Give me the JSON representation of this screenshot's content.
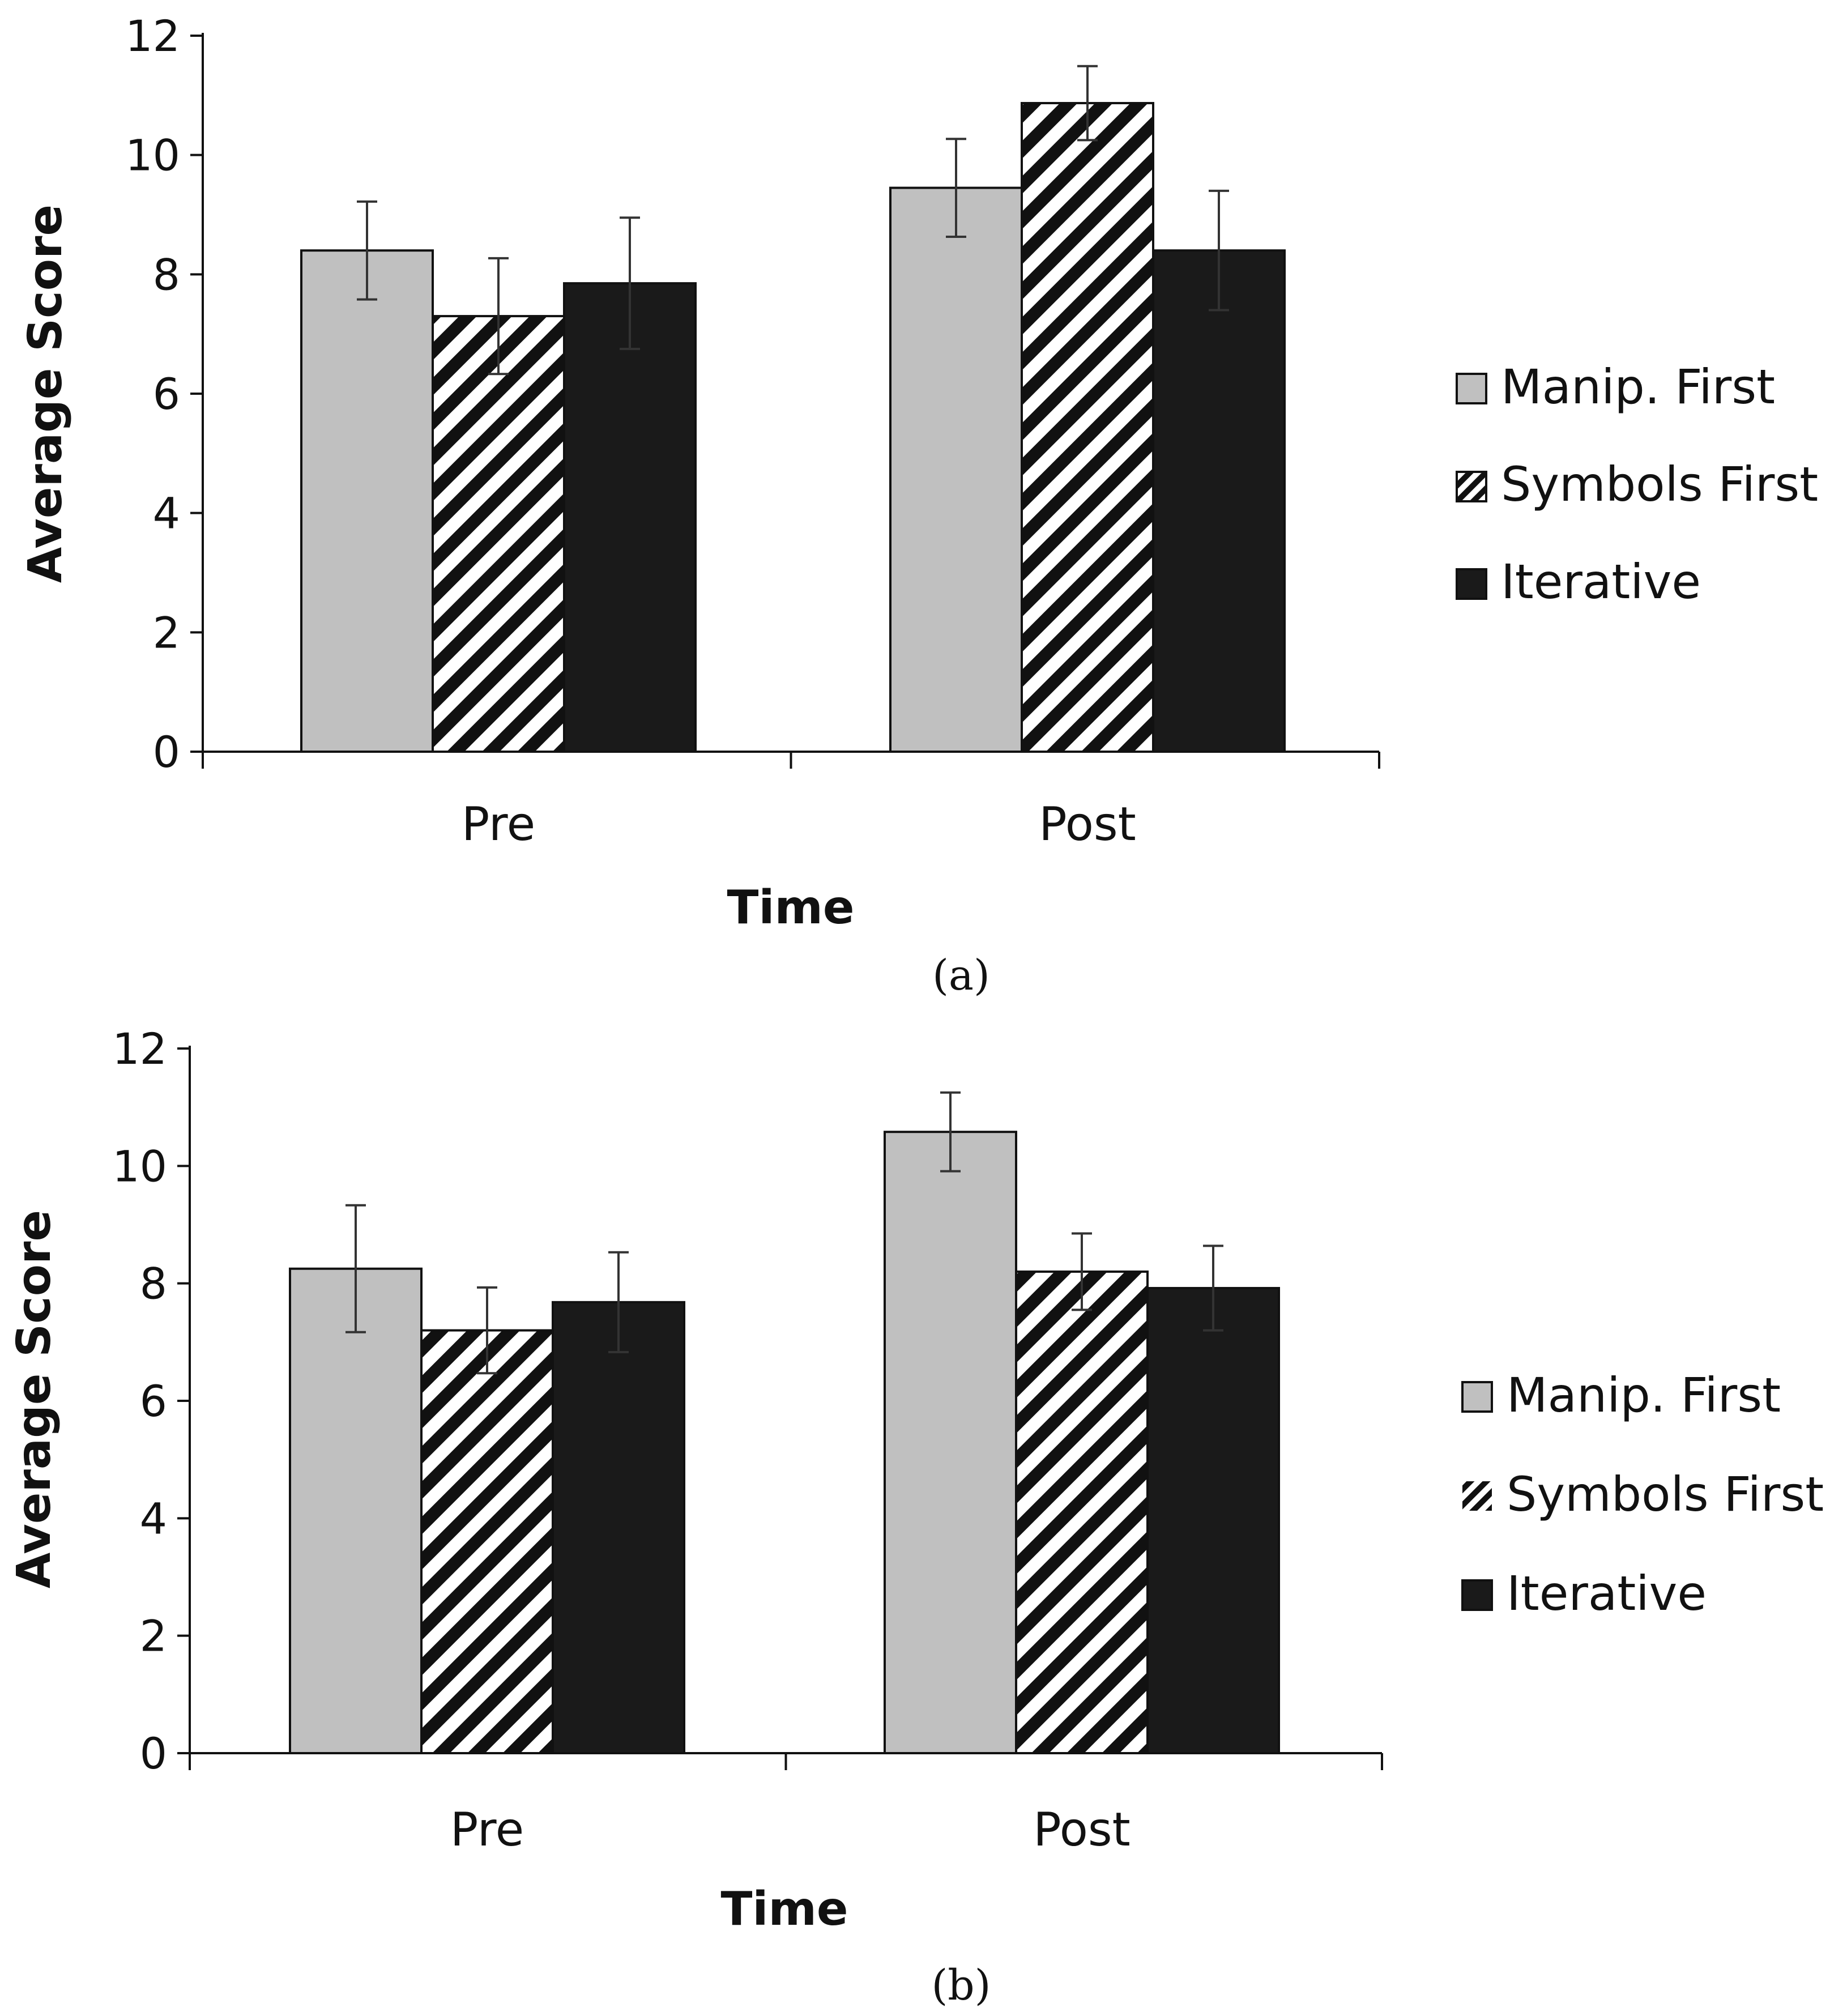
{
  "chart_data": [
    {
      "type": "bar",
      "panel_label": "(a)",
      "categories": [
        "Pre",
        "Post"
      ],
      "series": [
        {
          "name": "Manip. First",
          "values": [
            8.4,
            9.45
          ],
          "errors": [
            0.82,
            0.82
          ],
          "fill": "#c0c0c0",
          "pattern": "solid"
        },
        {
          "name": "Symbols First",
          "values": [
            7.3,
            10.87
          ],
          "errors": [
            0.97,
            0.62
          ],
          "fill": "#ffffff",
          "pattern": "diagonal-stripes"
        },
        {
          "name": "Iterative",
          "values": [
            7.85,
            8.4
          ],
          "errors": [
            1.1,
            1.0
          ],
          "fill": "#1a1a1a",
          "pattern": "solid"
        }
      ],
      "xlabel": "Time",
      "ylabel": "Average Score",
      "ylim": [
        0,
        12
      ],
      "yticks": [
        "0",
        "2",
        "4",
        "6",
        "8",
        "10",
        "12"
      ],
      "grid": false,
      "legend_position": "right"
    },
    {
      "type": "bar",
      "panel_label": "(b)",
      "categories": [
        "Pre",
        "Post"
      ],
      "series": [
        {
          "name": "Manip. First",
          "values": [
            8.25,
            10.58
          ],
          "errors": [
            1.08,
            0.67
          ],
          "fill": "#c0c0c0",
          "pattern": "solid"
        },
        {
          "name": "Symbols First",
          "values": [
            7.2,
            8.2
          ],
          "errors": [
            0.73,
            0.65
          ],
          "fill": "#ffffff",
          "pattern": "diagonal-stripes"
        },
        {
          "name": "Iterative",
          "values": [
            7.68,
            7.92
          ],
          "errors": [
            0.85,
            0.72
          ],
          "fill": "#1a1a1a",
          "pattern": "solid"
        }
      ],
      "xlabel": "Time",
      "ylabel": "Average Score",
      "ylim": [
        0,
        12
      ],
      "yticks": [
        "0",
        "2",
        "4",
        "6",
        "8",
        "10",
        "12"
      ],
      "grid": false,
      "legend_position": "right"
    }
  ],
  "colors": {
    "axis": "#111111",
    "manip_first": "#c0c0c0",
    "symbols_first_stripe": "#111111",
    "iterative": "#1a1a1a",
    "bar_outline": "#111111",
    "error_bar": "#333333"
  }
}
